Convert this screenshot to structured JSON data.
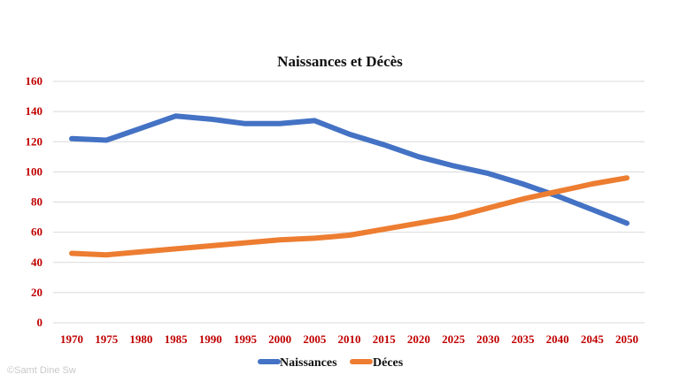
{
  "chart_data": {
    "type": "line",
    "title": "Naissances et Décès",
    "xlabel": "",
    "ylabel": "",
    "ylim": [
      0,
      160
    ],
    "yticks": [
      "0",
      "20",
      "40",
      "60",
      "80",
      "100",
      "120",
      "140",
      "160"
    ],
    "categories": [
      "1970",
      "1975",
      "1980",
      "1985",
      "1990",
      "1995",
      "2000",
      "2005",
      "2010",
      "2015",
      "2020",
      "2025",
      "2030",
      "2035",
      "2040",
      "2045",
      "2050"
    ],
    "series": [
      {
        "name": "Naissances",
        "color": "#4472C4",
        "values": [
          122,
          121,
          129,
          137,
          135,
          132,
          132,
          134,
          125,
          118,
          110,
          104,
          99,
          92,
          84,
          75,
          66
        ]
      },
      {
        "name": "Déces",
        "color": "#ED7D31",
        "values": [
          46,
          45,
          47,
          49,
          51,
          53,
          55,
          56,
          58,
          62,
          66,
          70,
          76,
          82,
          87,
          92,
          96
        ]
      }
    ],
    "grid": true,
    "legend_position": "bottom",
    "tick_color": "#C00000"
  },
  "watermark": "©Samt Dine Sw"
}
